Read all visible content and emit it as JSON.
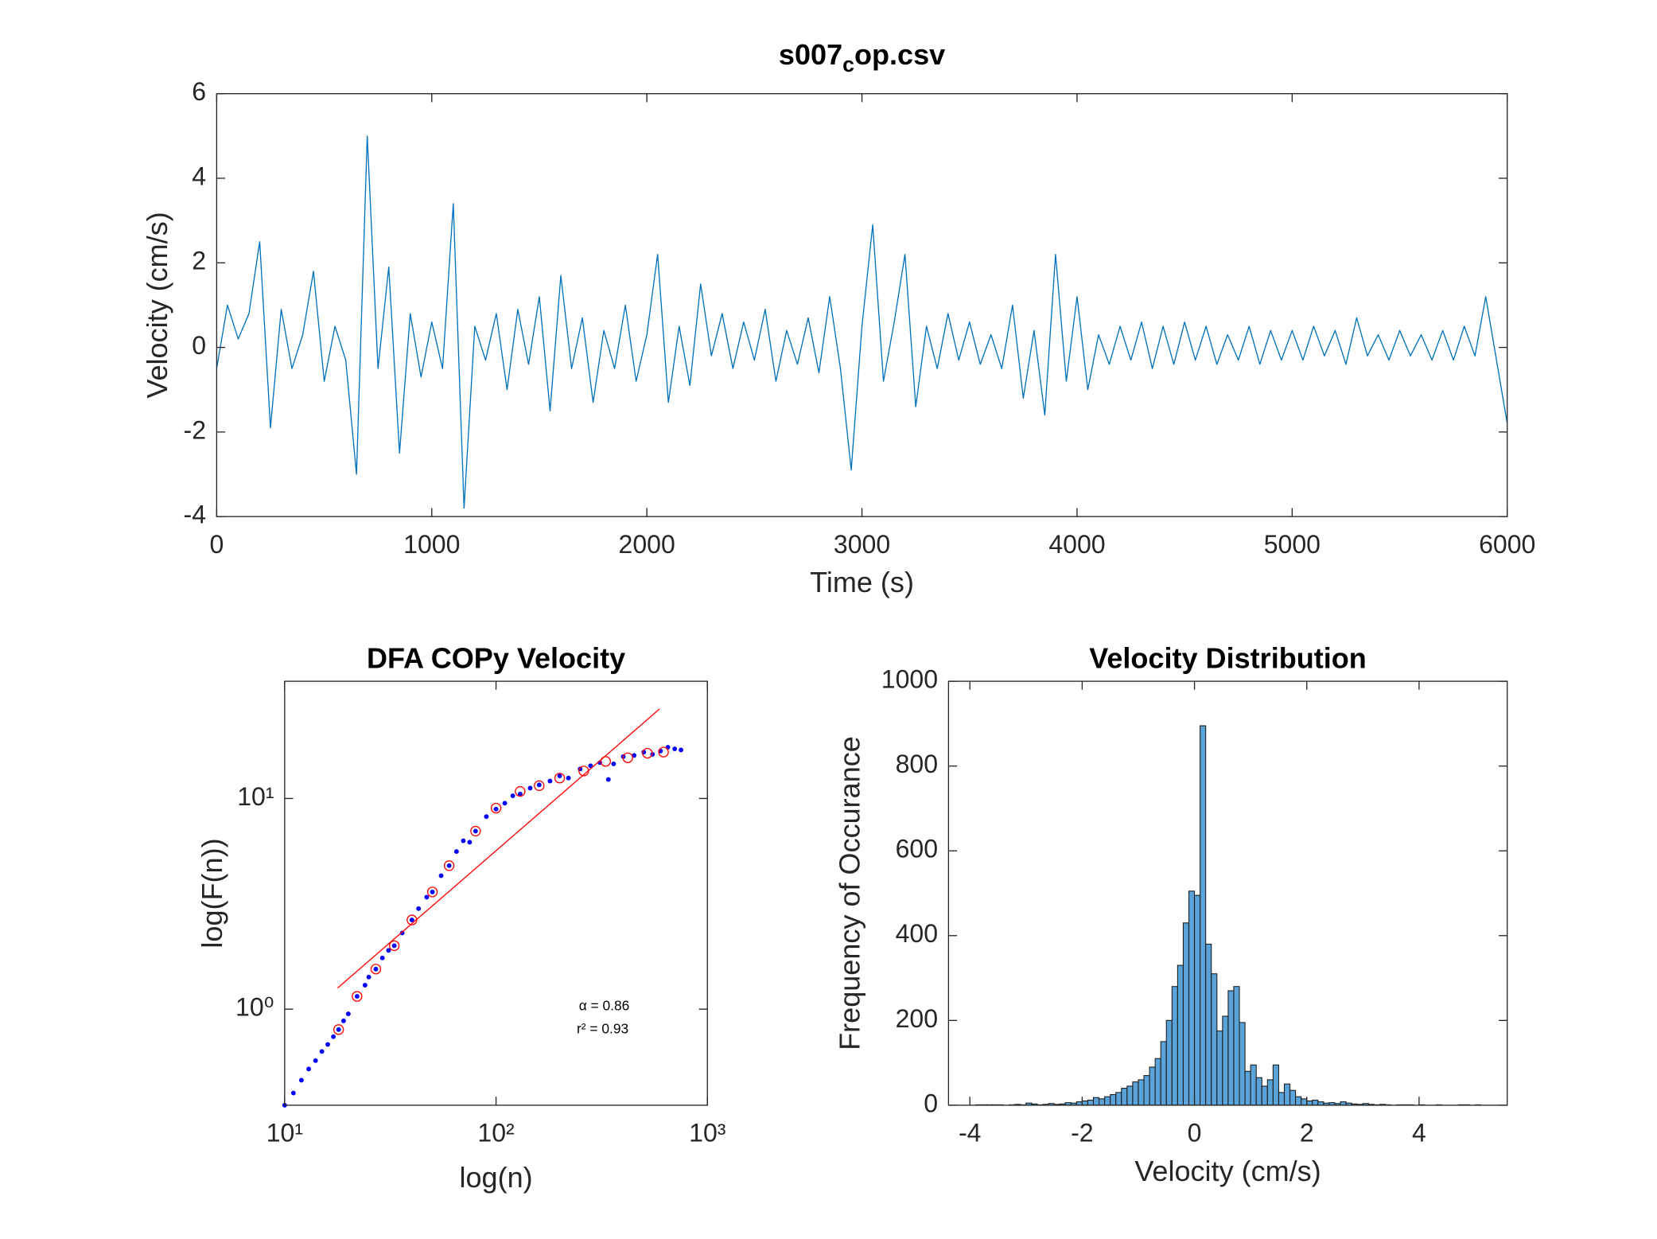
{
  "chart_data": [
    {
      "type": "line",
      "title": "s007",
      "title_subscript": "c",
      "title_suffix": "op.csv",
      "x_label": "Time (s)",
      "y_label": "Velocity (cm/s)",
      "xlim": [
        0,
        6000
      ],
      "ylim": [
        -4,
        6
      ],
      "xticks": [
        0,
        1000,
        2000,
        3000,
        4000,
        5000,
        6000
      ],
      "yticks": [
        -4,
        -2,
        0,
        2,
        4,
        6
      ],
      "grid": false,
      "series": [
        {
          "color": "#0072bd",
          "x": [
            0,
            50,
            100,
            150,
            200,
            250,
            300,
            350,
            400,
            450,
            500,
            550,
            600,
            650,
            700,
            750,
            800,
            850,
            900,
            950,
            1000,
            1050,
            1100,
            1150,
            1200,
            1250,
            1300,
            1350,
            1400,
            1450,
            1500,
            1550,
            1600,
            1650,
            1700,
            1750,
            1800,
            1850,
            1900,
            1950,
            2000,
            2050,
            2100,
            2150,
            2200,
            2250,
            2300,
            2350,
            2400,
            2450,
            2500,
            2550,
            2600,
            2650,
            2700,
            2750,
            2800,
            2850,
            2900,
            2950,
            3000,
            3050,
            3100,
            3150,
            3200,
            3250,
            3300,
            3350,
            3400,
            3450,
            3500,
            3550,
            3600,
            3650,
            3700,
            3750,
            3800,
            3850,
            3900,
            3950,
            4000,
            4050,
            4100,
            4150,
            4200,
            4250,
            4300,
            4350,
            4400,
            4450,
            4500,
            4550,
            4600,
            4650,
            4700,
            4750,
            4800,
            4850,
            4900,
            4950,
            5000,
            5050,
            5100,
            5150,
            5200,
            5250,
            5300,
            5350,
            5400,
            5450,
            5500,
            5550,
            5600,
            5650,
            5700,
            5750,
            5800,
            5850,
            5900,
            5950,
            6000
          ],
          "values": [
            -0.5,
            1.0,
            0.2,
            0.8,
            2.5,
            -1.9,
            0.9,
            -0.5,
            0.3,
            1.8,
            -0.8,
            0.5,
            -0.3,
            -3.0,
            5.0,
            -0.5,
            1.9,
            -2.5,
            0.8,
            -0.7,
            0.6,
            -0.5,
            3.4,
            -3.8,
            0.5,
            -0.3,
            0.8,
            -1.0,
            0.9,
            -0.4,
            1.2,
            -1.5,
            1.7,
            -0.5,
            0.7,
            -1.3,
            0.4,
            -0.5,
            1.0,
            -0.8,
            0.3,
            2.2,
            -1.3,
            0.5,
            -0.9,
            1.5,
            -0.2,
            0.8,
            -0.5,
            0.6,
            -0.3,
            0.9,
            -0.8,
            0.4,
            -0.4,
            0.7,
            -0.6,
            1.2,
            -0.5,
            -2.9,
            0.5,
            2.9,
            -0.8,
            0.6,
            2.2,
            -1.4,
            0.5,
            -0.5,
            0.8,
            -0.3,
            0.6,
            -0.4,
            0.3,
            -0.5,
            1.0,
            -1.2,
            0.4,
            -1.6,
            2.2,
            -0.8,
            1.2,
            -1.0,
            0.3,
            -0.4,
            0.5,
            -0.3,
            0.6,
            -0.5,
            0.5,
            -0.4,
            0.6,
            -0.3,
            0.5,
            -0.4,
            0.3,
            -0.3,
            0.5,
            -0.4,
            0.4,
            -0.3,
            0.4,
            -0.3,
            0.5,
            -0.2,
            0.4,
            -0.4,
            0.7,
            -0.2,
            0.3,
            -0.3,
            0.4,
            -0.2,
            0.3,
            -0.3,
            0.4,
            -0.3,
            0.5,
            -0.2,
            1.2,
            -0.3,
            -1.8
          ]
        }
      ]
    },
    {
      "type": "scatter",
      "title": "DFA COPy Velocity",
      "x_label": "log(n)",
      "y_label": "log(F(n))",
      "xscale": "log",
      "yscale": "log",
      "xlim": [
        10,
        1000
      ],
      "ylim": [
        0.35,
        36
      ],
      "xticks": [
        {
          "value": 10,
          "label": "10¹"
        },
        {
          "value": 100,
          "label": "10²"
        },
        {
          "value": 1000,
          "label": "10³"
        }
      ],
      "yticks": [
        {
          "value": 1,
          "label": "10⁰"
        },
        {
          "value": 10,
          "label": "10¹"
        }
      ],
      "grid": false,
      "annotations": [
        "α = 0.86",
        "r² = 0.93"
      ],
      "series": [
        {
          "color": "#0000ff",
          "marker": "dot",
          "x": [
            10,
            11,
            12,
            13,
            14,
            15,
            16,
            17,
            18,
            19,
            20,
            22,
            24,
            25,
            27,
            29,
            31,
            33,
            36,
            40,
            43,
            47,
            50,
            55,
            60,
            65,
            70,
            75,
            80,
            90,
            100,
            110,
            120,
            130,
            145,
            160,
            180,
            200,
            220,
            250,
            280,
            310,
            340,
            360,
            400,
            450,
            500,
            550,
            600,
            650,
            700,
            750
          ],
          "values": [
            0.35,
            0.4,
            0.46,
            0.52,
            0.57,
            0.63,
            0.68,
            0.74,
            0.8,
            0.88,
            0.95,
            1.15,
            1.3,
            1.42,
            1.55,
            1.75,
            1.9,
            2.0,
            2.3,
            2.65,
            3.0,
            3.4,
            3.6,
            4.3,
            4.8,
            5.6,
            6.3,
            6.2,
            7.0,
            8.2,
            8.9,
            9.5,
            10.3,
            10.5,
            11.2,
            11.6,
            12.1,
            12.8,
            12.5,
            13.8,
            14.3,
            14.8,
            12.3,
            14.6,
            15.8,
            16.0,
            16.6,
            16.2,
            16.8,
            17.5,
            17.2,
            17.0
          ]
        },
        {
          "color": "#ff0000",
          "marker": "open-circle",
          "x": [
            18,
            22,
            27,
            33,
            40,
            50,
            60,
            80,
            100,
            130,
            160,
            200,
            260,
            330,
            420,
            520,
            620
          ],
          "values": [
            0.8,
            1.15,
            1.55,
            2.0,
            2.65,
            3.6,
            4.8,
            7.0,
            9.0,
            10.8,
            11.5,
            12.5,
            13.5,
            15.0,
            15.6,
            16.4,
            16.6
          ]
        },
        {
          "color": "#ff0000",
          "marker": "line",
          "x": [
            17.8,
            594
          ],
          "values": [
            1.26,
            26.6
          ]
        }
      ]
    },
    {
      "type": "histogram",
      "title": "Velocity Distribution",
      "x_label": "Velocity (cm/s)",
      "y_label": "Frequency of Occurance",
      "xlim": [
        -4.38,
        5.57
      ],
      "ylim": [
        0,
        1000
      ],
      "xticks": [
        -4,
        -2,
        0,
        2,
        4
      ],
      "yticks": [
        0,
        200,
        400,
        600,
        800,
        1000
      ],
      "grid": false,
      "color": "#5aa3d8",
      "bins": [
        -4.0,
        -3.9,
        -3.8,
        -3.7,
        -3.6,
        -3.5,
        -3.4,
        -3.3,
        -3.2,
        -3.1,
        -3.0,
        -2.9,
        -2.8,
        -2.7,
        -2.6,
        -2.5,
        -2.4,
        -2.3,
        -2.2,
        -2.1,
        -2.0,
        -1.9,
        -1.8,
        -1.7,
        -1.6,
        -1.5,
        -1.4,
        -1.3,
        -1.2,
        -1.1,
        -1.0,
        -0.9,
        -0.8,
        -0.7,
        -0.6,
        -0.5,
        -0.4,
        -0.3,
        -0.2,
        -0.1,
        0.0,
        0.1,
        0.2,
        0.3,
        0.4,
        0.5,
        0.6,
        0.7,
        0.8,
        0.9,
        1.0,
        1.1,
        1.2,
        1.3,
        1.4,
        1.5,
        1.6,
        1.7,
        1.8,
        1.9,
        2.0,
        2.1,
        2.2,
        2.3,
        2.4,
        2.5,
        2.6,
        2.7,
        2.8,
        2.9,
        3.0,
        3.1,
        3.2,
        3.3,
        3.4,
        3.5,
        3.6,
        3.7,
        3.8,
        3.9,
        4.0,
        4.1,
        4.2,
        4.3,
        4.4,
        4.5,
        4.6,
        4.7,
        4.8,
        4.9,
        5.0,
        5.1
      ],
      "values": [
        0,
        1,
        1,
        1,
        1,
        1,
        0,
        1,
        2,
        1,
        5,
        3,
        1,
        2,
        4,
        2,
        3,
        6,
        5,
        8,
        10,
        12,
        18,
        15,
        20,
        25,
        30,
        40,
        45,
        55,
        60,
        70,
        90,
        110,
        150,
        200,
        280,
        330,
        430,
        505,
        495,
        895,
        380,
        310,
        175,
        210,
        270,
        280,
        195,
        80,
        95,
        65,
        45,
        60,
        95,
        30,
        50,
        35,
        20,
        15,
        10,
        12,
        8,
        5,
        6,
        4,
        8,
        5,
        3,
        2,
        4,
        2,
        1,
        2,
        1,
        0,
        1,
        1,
        1,
        0,
        1,
        0,
        0,
        1,
        0,
        0,
        0,
        1,
        1,
        0,
        1
      ]
    }
  ]
}
